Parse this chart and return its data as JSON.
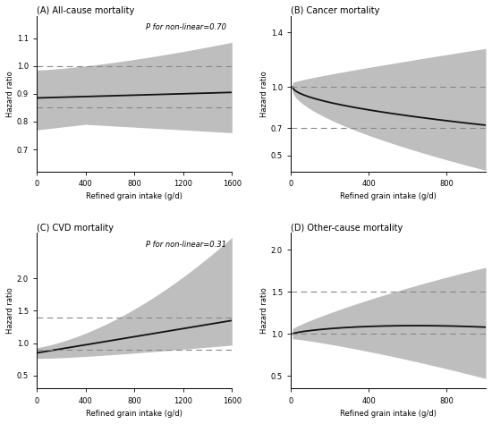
{
  "panels": [
    {
      "title": "(A) All-cause mortality",
      "p_value_text": "P for non-linear=0.70",
      "xlabel": "Refined grain intake (g/d)",
      "ylabel": "Hazard ratio",
      "xmin": 0,
      "xmax": 1600,
      "xticks": [
        0,
        400,
        800,
        1200,
        1600
      ],
      "yticks": [
        0.7,
        0.8,
        0.9,
        1.0,
        1.1
      ],
      "ylim": [
        0.62,
        1.18
      ],
      "ref_lines": [
        0.85,
        1.0
      ],
      "show_p": true
    },
    {
      "title": "(B) Cancer mortality",
      "p_value_text": "",
      "xlabel": "Refined grain intake (g/d)",
      "ylabel": "Hazard ratio",
      "xmin": 0,
      "xmax": 1000,
      "xticks": [
        0,
        400,
        800
      ],
      "yticks": [
        0.5,
        0.7,
        1.0,
        1.4
      ],
      "ylim": [
        0.38,
        1.52
      ],
      "ref_lines": [
        0.7,
        1.0
      ],
      "show_p": false
    },
    {
      "title": "(C) CVD mortality",
      "p_value_text": "P for non-linear=0.31",
      "xlabel": "Refined grain intake (g/d)",
      "ylabel": "Hazard ratio",
      "xmin": 0,
      "xmax": 1600,
      "xticks": [
        0,
        400,
        800,
        1200,
        1600
      ],
      "yticks": [
        0.5,
        1.0,
        1.5,
        2.0
      ],
      "ylim": [
        0.3,
        2.7
      ],
      "ref_lines": [
        0.9,
        1.4
      ],
      "show_p": true
    },
    {
      "title": "(D) Other-cause mortality",
      "p_value_text": "",
      "xlabel": "Refined grain intake (g/d)",
      "ylabel": "Hazard ratio",
      "xmin": 0,
      "xmax": 1000,
      "xticks": [
        0,
        400,
        800
      ],
      "yticks": [
        0.5,
        1.0,
        1.5,
        2.0
      ],
      "ylim": [
        0.35,
        2.2
      ],
      "ref_lines": [
        1.0,
        1.5
      ],
      "show_p": false
    }
  ],
  "fill_color": "#bebebe",
  "line_color": "#111111",
  "ref_line_color": "#888888",
  "background_color": "#ffffff"
}
